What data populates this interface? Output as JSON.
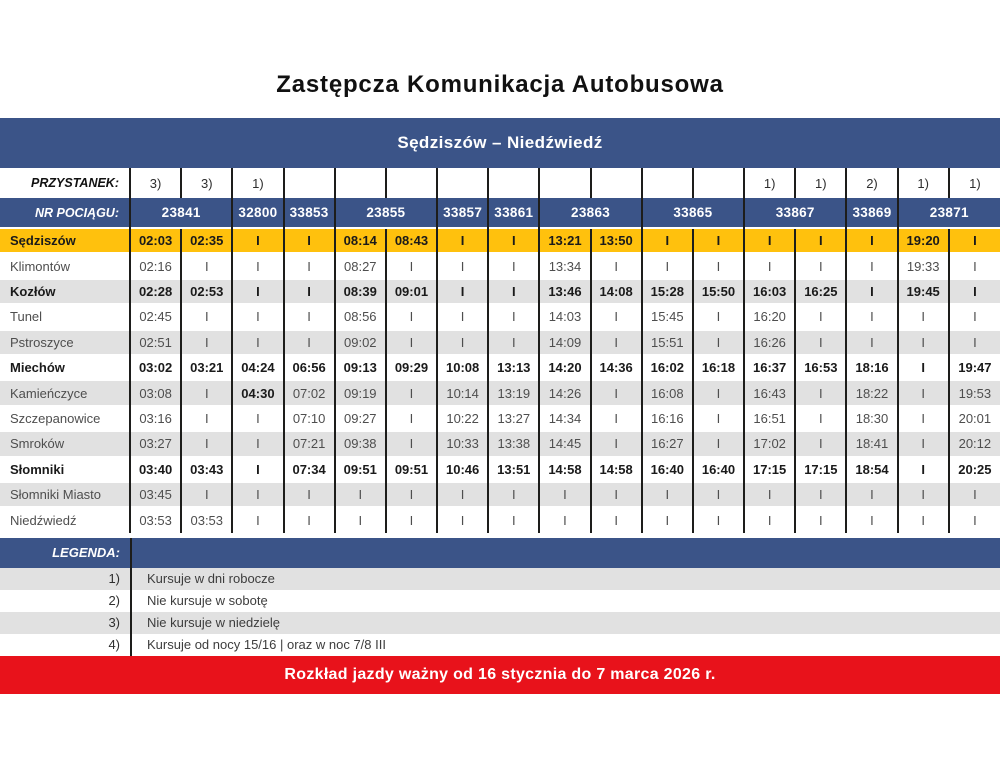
{
  "title": "Zastępcza Komunikacja Autobusowa",
  "route": "Sędziszów – Niedźwiedź",
  "labels": {
    "stop": "PRZYSTANEK:",
    "train": "NR POCIĄGU:",
    "legend": "LEGENDA:"
  },
  "colors": {
    "blue": "#3b5488",
    "yellow": "#ffc10d",
    "red": "#e8121b",
    "gray_row": "#e1e1e1",
    "line": "#1d1d1b"
  },
  "header": {
    "footnotes": [
      "3)",
      "3)",
      "1)",
      "",
      "",
      "",
      "",
      "",
      "",
      "",
      "",
      "",
      "1)",
      "1)",
      "2)",
      "1)",
      "1)"
    ],
    "trains": [
      {
        "number": "23841",
        "span": 2
      },
      {
        "number": "32800",
        "span": 1
      },
      {
        "number": "33853",
        "span": 1
      },
      {
        "number": "23855",
        "span": 2
      },
      {
        "number": "33857",
        "span": 1
      },
      {
        "number": "33861",
        "span": 1
      },
      {
        "number": "23863",
        "span": 2
      },
      {
        "number": "33865",
        "span": 2
      },
      {
        "number": "33867",
        "span": 2
      },
      {
        "number": "33869",
        "span": 1
      },
      {
        "number": "23871",
        "span": 2
      }
    ]
  },
  "rows": [
    {
      "station": "Sędziszów",
      "bold": true,
      "highlight": true,
      "times": [
        "02:03",
        "02:35",
        "I",
        "I",
        "08:14",
        "08:43",
        "I",
        "I",
        "13:21",
        "13:50",
        "I",
        "I",
        "I",
        "I",
        "I",
        "19:20",
        "I"
      ]
    },
    {
      "station": "Klimontów",
      "bold": false,
      "times": [
        "02:16",
        "I",
        "I",
        "I",
        "08:27",
        "I",
        "I",
        "I",
        "13:34",
        "I",
        "I",
        "I",
        "I",
        "I",
        "I",
        "19:33",
        "I"
      ]
    },
    {
      "station": "Kozłów",
      "bold": true,
      "times": [
        "02:28",
        "02:53",
        "I",
        "I",
        "08:39",
        "09:01",
        "I",
        "I",
        "13:46",
        "14:08",
        "15:28",
        "15:50",
        "16:03",
        "16:25",
        "I",
        "19:45",
        "I"
      ]
    },
    {
      "station": "Tunel",
      "bold": false,
      "times": [
        "02:45",
        "I",
        "I",
        "I",
        "08:56",
        "I",
        "I",
        "I",
        "14:03",
        "I",
        "15:45",
        "I",
        "16:20",
        "I",
        "I",
        "I",
        "I"
      ]
    },
    {
      "station": "Pstroszyce",
      "bold": false,
      "times": [
        "02:51",
        "I",
        "I",
        "I",
        "09:02",
        "I",
        "I",
        "I",
        "14:09",
        "I",
        "15:51",
        "I",
        "16:26",
        "I",
        "I",
        "I",
        "I"
      ]
    },
    {
      "station": "Miechów",
      "bold": true,
      "times": [
        "03:02",
        "03:21",
        "04:24",
        "06:56",
        "09:13",
        "09:29",
        "10:08",
        "13:13",
        "14:20",
        "14:36",
        "16:02",
        "16:18",
        "16:37",
        "16:53",
        "18:16",
        "I",
        "19:47"
      ]
    },
    {
      "station": "Kamieńczyce",
      "bold": false,
      "bold_cols": [
        2
      ],
      "times": [
        "03:08",
        "I",
        "04:30",
        "07:02",
        "09:19",
        "I",
        "10:14",
        "13:19",
        "14:26",
        "I",
        "16:08",
        "I",
        "16:43",
        "I",
        "18:22",
        "I",
        "19:53"
      ]
    },
    {
      "station": "Szczepanowice",
      "bold": false,
      "times": [
        "03:16",
        "I",
        "I",
        "07:10",
        "09:27",
        "I",
        "10:22",
        "13:27",
        "14:34",
        "I",
        "16:16",
        "I",
        "16:51",
        "I",
        "18:30",
        "I",
        "20:01"
      ]
    },
    {
      "station": "Smroków",
      "bold": false,
      "times": [
        "03:27",
        "I",
        "I",
        "07:21",
        "09:38",
        "I",
        "10:33",
        "13:38",
        "14:45",
        "I",
        "16:27",
        "I",
        "17:02",
        "I",
        "18:41",
        "I",
        "20:12"
      ]
    },
    {
      "station": "Słomniki",
      "bold": true,
      "times": [
        "03:40",
        "03:43",
        "I",
        "07:34",
        "09:51",
        "09:51",
        "10:46",
        "13:51",
        "14:58",
        "14:58",
        "16:40",
        "16:40",
        "17:15",
        "17:15",
        "18:54",
        "I",
        "20:25"
      ]
    },
    {
      "station": "Słomniki Miasto",
      "bold": false,
      "times": [
        "03:45",
        "I",
        "I",
        "I",
        "I",
        "I",
        "I",
        "I",
        "I",
        "I",
        "I",
        "I",
        "I",
        "I",
        "I",
        "I",
        "I"
      ]
    },
    {
      "station": "Niedźwiedź",
      "bold": false,
      "times": [
        "03:53",
        "03:53",
        "I",
        "I",
        "I",
        "I",
        "I",
        "I",
        "I",
        "I",
        "I",
        "I",
        "I",
        "I",
        "I",
        "I",
        "I"
      ]
    }
  ],
  "legend": {
    "items": [
      {
        "marker": "1)",
        "text": "Kursuje w dni robocze"
      },
      {
        "marker": "2)",
        "text": "Nie kursuje w sobotę"
      },
      {
        "marker": "3)",
        "text": "Nie kursuje w niedzielę"
      },
      {
        "marker": "4)",
        "text": "Kursuje od nocy 15/16  |  oraz w noc 7/8 III"
      }
    ]
  },
  "footer": {
    "text": "Rozkład jazdy ważny od 16 stycznia do 7 marca 2026 r."
  }
}
